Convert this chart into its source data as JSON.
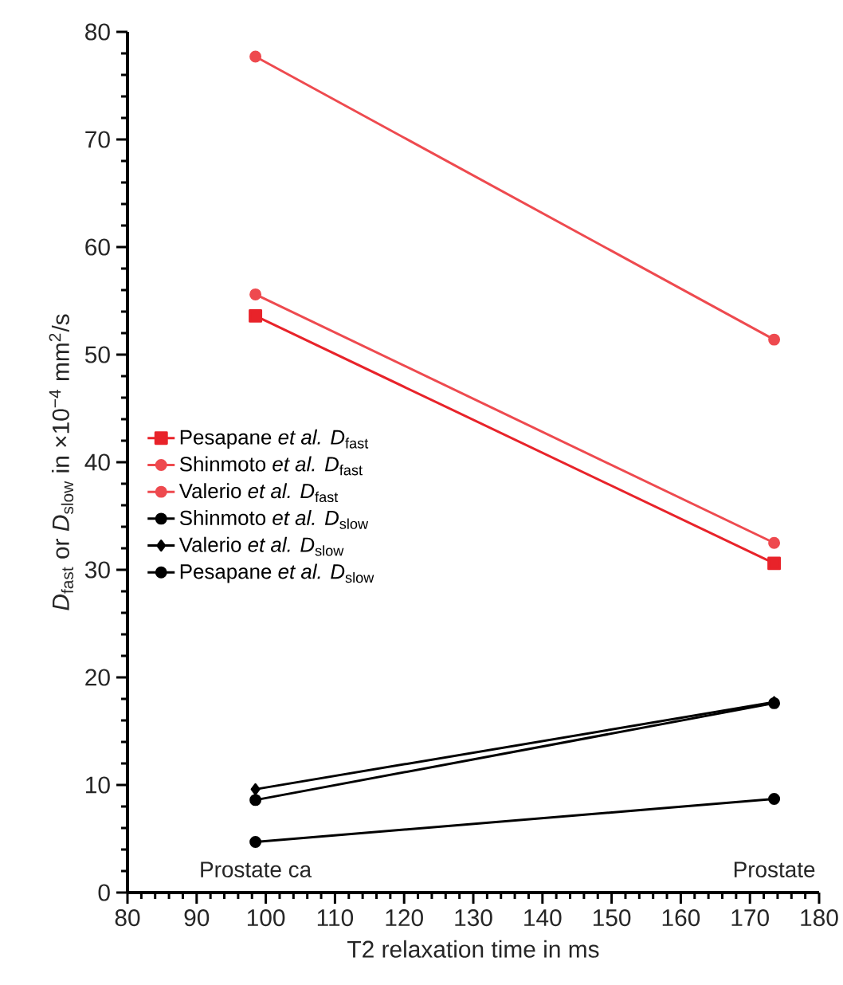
{
  "chart_data": {
    "type": "line",
    "xlabel": "T2 relaxation time in ms",
    "ylabel": "*D*$_{fast}$ or *D*$_{slow}$ in ×10$^{−4}$ mm$^{2}$/s",
    "x": [
      98.5,
      173.5
    ],
    "series": [
      {
        "name": "Pesapane *et al.* *D*$_{fast}$",
        "color": "#e8232a",
        "values": [
          53.6,
          30.6
        ],
        "marker": "square"
      },
      {
        "name": "Shinmoto *et al.* *D*$_{fast}$",
        "color": "#ee4a4f",
        "values": [
          55.6,
          32.5
        ],
        "marker": "circle"
      },
      {
        "name": "Valerio *et al.* *D*$_{fast}$",
        "color": "#ee4a4f",
        "values": [
          77.7,
          51.4
        ],
        "marker": "circle"
      },
      {
        "name": "Shinmoto *et al.* *D*$_{slow}$",
        "color": "#000000",
        "values": [
          4.7,
          8.7
        ],
        "marker": "circle"
      },
      {
        "name": "Valerio *et al.* *D*$_{slow}$",
        "color": "#000000",
        "values": [
          9.6,
          17.7
        ],
        "marker": "diamond"
      },
      {
        "name": "Pesapane *et al.* *D*$_{slow}$",
        "color": "#000000",
        "values": [
          8.6,
          17.6
        ],
        "marker": "circle"
      }
    ],
    "xlim": [
      80,
      180
    ],
    "xticks": [
      80,
      90,
      100,
      110,
      120,
      130,
      140,
      150,
      160,
      170,
      180
    ],
    "ylim": [
      0,
      80
    ],
    "yticks": [
      0,
      10,
      20,
      30,
      40,
      50,
      60,
      70,
      80
    ],
    "annotations": [
      "Prostate ca",
      "Prostate"
    ],
    "legend": "left",
    "grid": false,
    "line_style": "solid"
  }
}
